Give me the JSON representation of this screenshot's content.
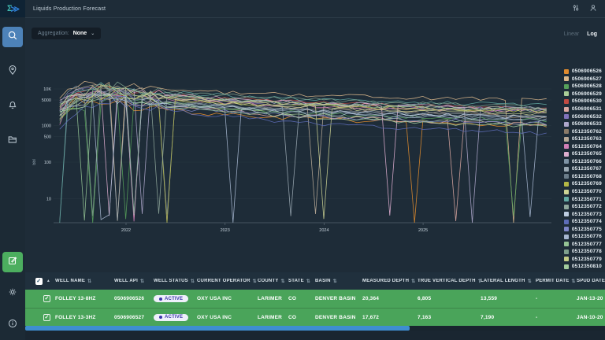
{
  "app": {
    "title": "Liquids Production Forecast"
  },
  "header_icons": [
    {
      "name": "sliders-icon"
    },
    {
      "name": "user-icon"
    }
  ],
  "sidebar": {
    "items": [
      {
        "name": "search",
        "active": true
      },
      {
        "name": "locations",
        "active": false
      },
      {
        "name": "notifications",
        "active": false
      },
      {
        "name": "files",
        "active": false
      }
    ],
    "bottom_items": [
      {
        "name": "editor",
        "active": true
      },
      {
        "name": "settings",
        "active": false
      },
      {
        "name": "info",
        "active": false
      }
    ]
  },
  "controls": {
    "aggregation_label": "Aggregation:",
    "aggregation_value": "None",
    "caret": "⌄",
    "scale_linear": "Linear",
    "scale_log": "Log"
  },
  "chart_data": {
    "type": "line",
    "y_scale": "log",
    "ylabel": "bbl",
    "y_ticks": [
      {
        "label": "10K",
        "value": 10000
      },
      {
        "label": "5000",
        "value": 5000
      },
      {
        "label": "1000",
        "value": 1000
      },
      {
        "label": "500",
        "value": 500
      },
      {
        "label": "100",
        "value": 100
      },
      {
        "label": "10",
        "value": 10
      }
    ],
    "x_ticks": [
      2022,
      2023,
      2024,
      2025
    ],
    "x_range": [
      2021.33,
      2026.27
    ],
    "y_range_observed": [
      2,
      15000
    ],
    "series": [
      {
        "name": "0506906526",
        "color": "#e08b2e"
      },
      {
        "name": "0506906527",
        "color": "#dcb98c"
      },
      {
        "name": "0506906528",
        "color": "#56a05a"
      },
      {
        "name": "0506906529",
        "color": "#a9cd96"
      },
      {
        "name": "0506906530",
        "color": "#c04a42"
      },
      {
        "name": "0506906531",
        "color": "#dba8a2"
      },
      {
        "name": "0506906532",
        "color": "#8173bb"
      },
      {
        "name": "0506906533",
        "color": "#aea7cb"
      },
      {
        "name": "0512350762",
        "color": "#8a7a68"
      },
      {
        "name": "0512350763",
        "color": "#b7a997"
      },
      {
        "name": "0512350764",
        "color": "#d27fb7"
      },
      {
        "name": "0512350765",
        "color": "#ddaecf"
      },
      {
        "name": "0512350766",
        "color": "#7e93a4"
      },
      {
        "name": "0512350767",
        "color": "#9aa8b2"
      },
      {
        "name": "0512350768",
        "color": "#6b7d8a"
      },
      {
        "name": "0512350769",
        "color": "#b4b845"
      },
      {
        "name": "0512350770",
        "color": "#ccd394"
      },
      {
        "name": "0512350771",
        "color": "#63aaa3"
      },
      {
        "name": "0512350772",
        "color": "#8fa79b"
      },
      {
        "name": "0512350773",
        "color": "#bccce0"
      },
      {
        "name": "0512350774",
        "color": "#5d6cb8"
      },
      {
        "name": "0512350775",
        "color": "#7e86c8"
      },
      {
        "name": "0512350776",
        "color": "#a6b6cf"
      },
      {
        "name": "0512350777",
        "color": "#94c394"
      },
      {
        "name": "0512350778",
        "color": "#7fa08c"
      },
      {
        "name": "0512350779",
        "color": "#c3cc85"
      },
      {
        "name": "0512350810",
        "color": "#a3cc9c"
      }
    ]
  },
  "table": {
    "columns": [
      "WELL NAME",
      "WELL API",
      "WELL STATUS",
      "CURRENT OPERATOR",
      "COUNTY",
      "STATE",
      "BASIN",
      "MEASURED DEPTH",
      "TRUE VERTICAL DEPTH",
      "LATERAL LENGTH",
      "PERMIT DATE",
      "SPUD DATE"
    ],
    "sort_glyph": "⇅",
    "asc_glyph": "▲",
    "check_glyph": "✓",
    "rows": [
      {
        "checked": true,
        "cells": [
          "FOLLEY 13-8HZ",
          "0506906526",
          "ACTIVE",
          "OXY USA INC",
          "LARIMER",
          "CO",
          "DENVER BASIN",
          "20,364",
          "6,805",
          "13,559",
          "-",
          "JAN-13-20"
        ]
      },
      {
        "checked": true,
        "cells": [
          "FOLLEY 13-3HZ",
          "0506906527",
          "ACTIVE",
          "OXY USA INC",
          "LARIMER",
          "CO",
          "DENVER BASIN",
          "17,672",
          "7,163",
          "7,190",
          "-",
          "JAN-10-20"
        ]
      }
    ]
  },
  "colors": {
    "accent_blue": "#4d82b8",
    "accent_green": "#4cae5f",
    "row_green": "#4aa45a",
    "scroll_thumb_blue": "#3e8ed0",
    "badge_indigo": "#3b35a8",
    "logo_teal": "#3fb8af",
    "logo_blue": "#2f7fd6"
  }
}
